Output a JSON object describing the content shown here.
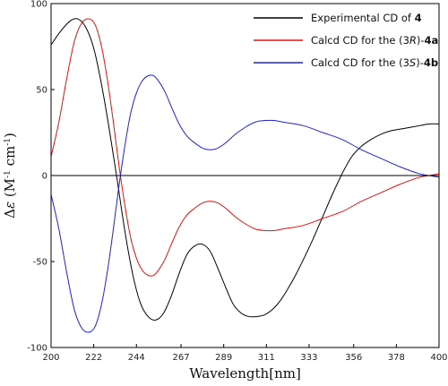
{
  "chart_data": {
    "type": "line",
    "xlabel": "Wavelength[nm]",
    "ylabel": {
      "delta": "Δ",
      "epsilon": "ε",
      "open": " (M",
      "exp1": "-1",
      "cm": " cm",
      "exp2": "-1",
      "close": ")"
    },
    "xlim": [
      200,
      400
    ],
    "ylim": [
      -100,
      100
    ],
    "xticks": [
      200,
      222,
      244,
      267,
      289,
      311,
      333,
      356,
      378,
      400
    ],
    "yticks": [
      -100,
      -50,
      0,
      50,
      100
    ],
    "grid": false,
    "legend_position": "top-right",
    "series": [
      {
        "legend": {
          "prefix": "Experimental CD of ",
          "compound": "4"
        },
        "color": "#000000",
        "x": [
          200,
          205,
          210,
          214,
          218,
          222,
          226,
          230,
          234,
          238,
          242,
          246,
          250,
          254,
          258,
          262,
          266,
          270,
          274,
          278,
          282,
          286,
          290,
          294,
          298,
          302,
          306,
          310,
          314,
          318,
          322,
          326,
          330,
          335,
          340,
          345,
          350,
          355,
          360,
          365,
          370,
          375,
          380,
          385,
          390,
          395,
          400
        ],
        "y": [
          76,
          84,
          90,
          91,
          86,
          74,
          53,
          27,
          -2,
          -32,
          -57,
          -74,
          -82,
          -84,
          -80,
          -70,
          -57,
          -46,
          -41,
          -40,
          -44,
          -54,
          -65,
          -75,
          -80,
          -82,
          -82,
          -81,
          -78,
          -73,
          -66,
          -58,
          -49,
          -37,
          -24,
          -11,
          1,
          11,
          17,
          21,
          24,
          26,
          27,
          28,
          29,
          30,
          30
        ]
      },
      {
        "legend": {
          "prefix": "Calcd CD for the (3",
          "config": "R",
          "suffix": ")-",
          "compound": "4a"
        },
        "color": "#e81010",
        "x": [
          200,
          204,
          208,
          212,
          216,
          220,
          223,
          226,
          229,
          232,
          235,
          238,
          241,
          244,
          247,
          250,
          253,
          256,
          259,
          262,
          266,
          270,
          274,
          278,
          282,
          286,
          290,
          295,
          300,
          305,
          310,
          315,
          320,
          330,
          340,
          350,
          360,
          370,
          380,
          390,
          395,
          400
        ],
        "y": [
          11,
          31,
          56,
          78,
          89,
          91,
          87,
          75,
          56,
          32,
          6,
          -17,
          -36,
          -48,
          -55,
          -58,
          -58,
          -54,
          -48,
          -40,
          -30,
          -23,
          -19,
          -16,
          -15,
          -16,
          -19,
          -24,
          -28,
          -31,
          -32,
          -32,
          -31,
          -29,
          -25,
          -21,
          -15,
          -10,
          -5,
          -1,
          0,
          1
        ]
      },
      {
        "legend": {
          "prefix": "Calcd CD for the (3",
          "config": "S",
          "suffix": ")-",
          "compound": "4b"
        },
        "color": "#2020e0",
        "x": [
          200,
          204,
          208,
          212,
          216,
          220,
          223,
          226,
          229,
          232,
          235,
          238,
          241,
          244,
          247,
          250,
          253,
          256,
          259,
          262,
          266,
          270,
          274,
          278,
          282,
          286,
          290,
          295,
          300,
          305,
          310,
          315,
          320,
          330,
          340,
          350,
          360,
          370,
          380,
          390,
          395,
          400
        ],
        "y": [
          -11,
          -31,
          -56,
          -78,
          -89,
          -91,
          -87,
          -75,
          -56,
          -32,
          -6,
          17,
          36,
          48,
          55,
          58,
          58,
          54,
          48,
          40,
          30,
          23,
          19,
          16,
          15,
          16,
          19,
          24,
          28,
          31,
          32,
          32,
          31,
          29,
          25,
          21,
          15,
          10,
          5,
          1,
          0,
          -1
        ]
      }
    ]
  }
}
